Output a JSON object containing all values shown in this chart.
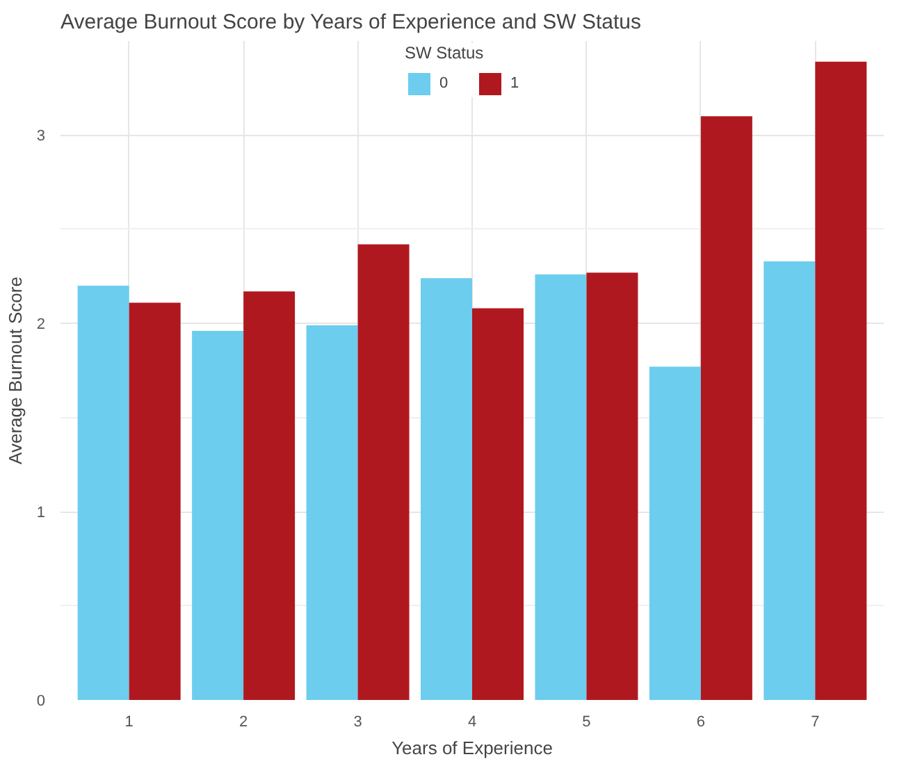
{
  "chart_data": {
    "type": "bar",
    "title": "Average Burnout Score by Years of Experience and SW Status",
    "xlabel": "Years of Experience",
    "ylabel": "Average Burnout Score",
    "legend_title": "SW Status",
    "categories": [
      "1",
      "2",
      "3",
      "4",
      "5",
      "6",
      "7"
    ],
    "series": [
      {
        "name": "0",
        "color": "#6ccdef",
        "values": [
          2.2,
          1.96,
          1.99,
          2.24,
          2.26,
          1.77,
          2.33
        ]
      },
      {
        "name": "1",
        "color": "#b01820",
        "values": [
          2.11,
          2.17,
          2.42,
          2.08,
          2.27,
          3.1,
          3.39
        ]
      }
    ],
    "ylim": [
      0,
      3.5
    ],
    "yticks": [
      0,
      1,
      2,
      3
    ],
    "grid": true,
    "legend": "top"
  }
}
